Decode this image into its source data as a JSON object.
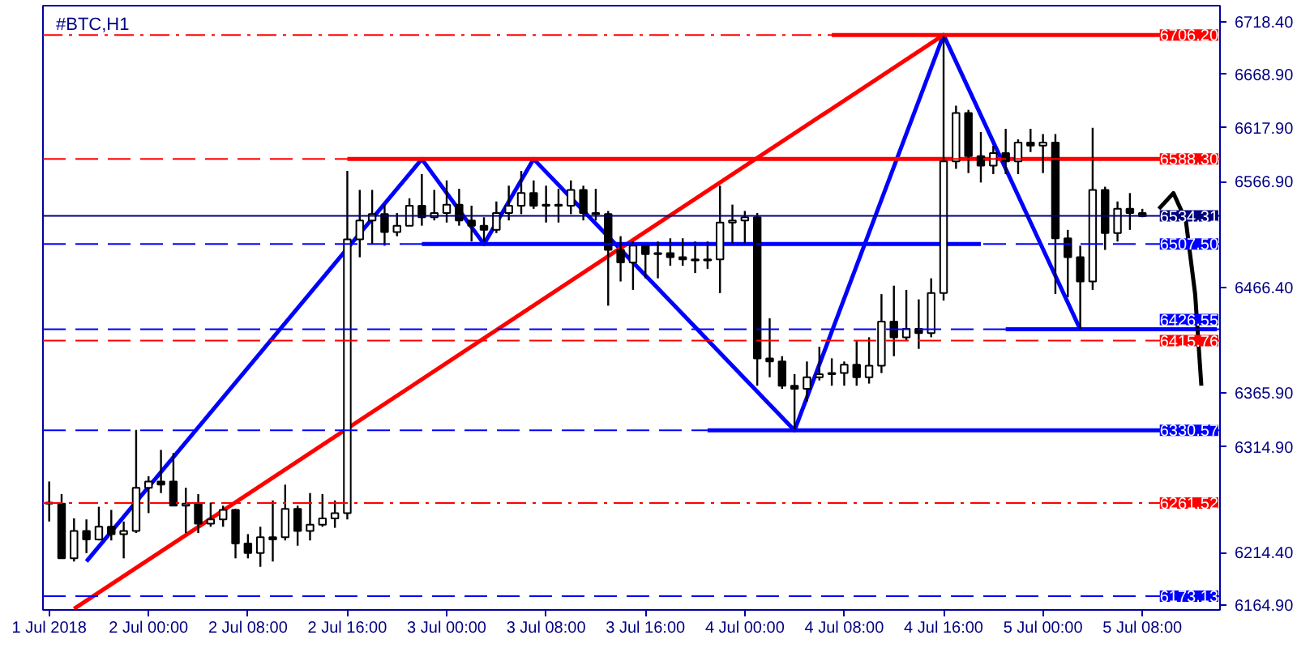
{
  "chart_data": {
    "type": "candlestick",
    "title": "#BTC,H1",
    "color": "#000000",
    "x": [
      "2018-07-01T16:00",
      "2018-07-01T17:00",
      "2018-07-01T18:00",
      "2018-07-01T19:00",
      "2018-07-01T20:00",
      "2018-07-01T21:00",
      "2018-07-01T22:00",
      "2018-07-01T23:00",
      "2018-07-02T00:00",
      "2018-07-02T01:00",
      "2018-07-02T02:00",
      "2018-07-02T03:00",
      "2018-07-02T04:00",
      "2018-07-02T05:00",
      "2018-07-02T06:00",
      "2018-07-02T07:00",
      "2018-07-02T08:00",
      "2018-07-02T09:00",
      "2018-07-02T10:00",
      "2018-07-02T11:00",
      "2018-07-02T12:00",
      "2018-07-02T13:00",
      "2018-07-02T14:00",
      "2018-07-02T15:00",
      "2018-07-02T16:00",
      "2018-07-02T17:00",
      "2018-07-02T18:00",
      "2018-07-02T19:00",
      "2018-07-02T20:00",
      "2018-07-02T21:00",
      "2018-07-02T22:00",
      "2018-07-02T23:00",
      "2018-07-03T00:00",
      "2018-07-03T01:00",
      "2018-07-03T02:00",
      "2018-07-03T03:00",
      "2018-07-03T04:00",
      "2018-07-03T05:00",
      "2018-07-03T06:00",
      "2018-07-03T07:00",
      "2018-07-03T08:00",
      "2018-07-03T09:00",
      "2018-07-03T10:00",
      "2018-07-03T11:00",
      "2018-07-03T12:00",
      "2018-07-03T13:00",
      "2018-07-03T14:00",
      "2018-07-03T15:00",
      "2018-07-03T16:00",
      "2018-07-03T17:00",
      "2018-07-03T18:00",
      "2018-07-03T19:00",
      "2018-07-03T20:00",
      "2018-07-03T21:00",
      "2018-07-03T22:00",
      "2018-07-03T23:00",
      "2018-07-04T00:00",
      "2018-07-04T01:00",
      "2018-07-04T02:00",
      "2018-07-04T03:00",
      "2018-07-04T04:00",
      "2018-07-04T05:00",
      "2018-07-04T06:00",
      "2018-07-04T07:00",
      "2018-07-04T08:00",
      "2018-07-04T09:00",
      "2018-07-04T10:00",
      "2018-07-04T11:00",
      "2018-07-04T12:00",
      "2018-07-04T13:00",
      "2018-07-04T14:00",
      "2018-07-04T15:00",
      "2018-07-04T16:00",
      "2018-07-04T17:00",
      "2018-07-04T18:00",
      "2018-07-04T19:00",
      "2018-07-04T20:00",
      "2018-07-04T21:00",
      "2018-07-04T22:00",
      "2018-07-04T23:00",
      "2018-07-05T00:00",
      "2018-07-05T01:00",
      "2018-07-05T02:00",
      "2018-07-05T03:00",
      "2018-07-05T04:00",
      "2018-07-05T05:00",
      "2018-07-05T06:00",
      "2018-07-05T07:00",
      "2018-07-05T08:00"
    ],
    "ohlc": [
      [
        6262,
        6282,
        6244,
        6261
      ],
      [
        6261,
        6270,
        6209,
        6209
      ],
      [
        6209,
        6247,
        6206,
        6235
      ],
      [
        6235,
        6246,
        6214,
        6227
      ],
      [
        6227,
        6258,
        6226,
        6239
      ],
      [
        6239,
        6255,
        6226,
        6232
      ],
      [
        6232,
        6244,
        6209,
        6235
      ],
      [
        6235,
        6331,
        6233,
        6276
      ],
      [
        6276,
        6287,
        6252,
        6282
      ],
      [
        6282,
        6312,
        6271,
        6279
      ],
      [
        6282,
        6309,
        6259,
        6259
      ],
      [
        6259,
        6276,
        6233,
        6261
      ],
      [
        6261,
        6270,
        6233,
        6242
      ],
      [
        6242,
        6262,
        6239,
        6246
      ],
      [
        6246,
        6259,
        6239,
        6255
      ],
      [
        6255,
        6256,
        6209,
        6223
      ],
      [
        6223,
        6232,
        6209,
        6214
      ],
      [
        6214,
        6239,
        6201,
        6229
      ],
      [
        6229,
        6264,
        6206,
        6227
      ],
      [
        6229,
        6279,
        6226,
        6256
      ],
      [
        6256,
        6259,
        6221,
        6235
      ],
      [
        6235,
        6271,
        6226,
        6241
      ],
      [
        6241,
        6270,
        6239,
        6247
      ],
      [
        6247,
        6264,
        6238,
        6252
      ],
      [
        6252,
        6577,
        6246,
        6512
      ],
      [
        6512,
        6559,
        6495,
        6530
      ],
      [
        6530,
        6559,
        6507,
        6536
      ],
      [
        6536,
        6545,
        6506,
        6519
      ],
      [
        6519,
        6537,
        6515,
        6525
      ],
      [
        6525,
        6551,
        6525,
        6544
      ],
      [
        6544,
        6574,
        6525,
        6533
      ],
      [
        6533,
        6559,
        6530,
        6537
      ],
      [
        6537,
        6568,
        6528,
        6545
      ],
      [
        6545,
        6560,
        6525,
        6530
      ],
      [
        6530,
        6544,
        6510,
        6525
      ],
      [
        6525,
        6533,
        6510,
        6521
      ],
      [
        6521,
        6548,
        6518,
        6537
      ],
      [
        6537,
        6563,
        6530,
        6544
      ],
      [
        6544,
        6577,
        6536,
        6556
      ],
      [
        6556,
        6568,
        6541,
        6544
      ],
      [
        6544,
        6563,
        6528,
        6545
      ],
      [
        6545,
        6560,
        6528,
        6544
      ],
      [
        6544,
        6568,
        6536,
        6559
      ],
      [
        6559,
        6563,
        6530,
        6537
      ],
      [
        6537,
        6560,
        6530,
        6536
      ],
      [
        6536,
        6539,
        6449,
        6502
      ],
      [
        6502,
        6515,
        6472,
        6490
      ],
      [
        6490,
        6510,
        6464,
        6506
      ],
      [
        6506,
        6507,
        6475,
        6498
      ],
      [
        6498,
        6510,
        6475,
        6499
      ],
      [
        6499,
        6513,
        6487,
        6495
      ],
      [
        6495,
        6513,
        6487,
        6493
      ],
      [
        6493,
        6510,
        6480,
        6492
      ],
      [
        6492,
        6510,
        6484,
        6493
      ],
      [
        6493,
        6563,
        6461,
        6528
      ],
      [
        6528,
        6545,
        6507,
        6530
      ],
      [
        6530,
        6539,
        6507,
        6533
      ],
      [
        6533,
        6537,
        6373,
        6399
      ],
      [
        6399,
        6437,
        6381,
        6396
      ],
      [
        6396,
        6401,
        6370,
        6373
      ],
      [
        6373,
        6384,
        6332,
        6370
      ],
      [
        6370,
        6396,
        6358,
        6381
      ],
      [
        6381,
        6410,
        6378,
        6384
      ],
      [
        6384,
        6399,
        6373,
        6385
      ],
      [
        6385,
        6396,
        6373,
        6393
      ],
      [
        6393,
        6416,
        6373,
        6381
      ],
      [
        6381,
        6419,
        6375,
        6392
      ],
      [
        6392,
        6460,
        6385,
        6434
      ],
      [
        6434,
        6468,
        6401,
        6419
      ],
      [
        6419,
        6464,
        6416,
        6427
      ],
      [
        6427,
        6455,
        6408,
        6423
      ],
      [
        6423,
        6475,
        6419,
        6461
      ],
      [
        6461,
        6706,
        6454,
        6586
      ],
      [
        6586,
        6639,
        6579,
        6632
      ],
      [
        6632,
        6635,
        6575,
        6591
      ],
      [
        6591,
        6614,
        6566,
        6582
      ],
      [
        6582,
        6601,
        6574,
        6594
      ],
      [
        6594,
        6617,
        6574,
        6586
      ],
      [
        6586,
        6607,
        6574,
        6604
      ],
      [
        6604,
        6617,
        6595,
        6601
      ],
      [
        6601,
        6612,
        6575,
        6604
      ],
      [
        6604,
        6612,
        6460,
        6513
      ],
      [
        6513,
        6521,
        6457,
        6495
      ],
      [
        6495,
        6506,
        6427,
        6472
      ],
      [
        6472,
        6618,
        6464,
        6559
      ],
      [
        6559,
        6562,
        6502,
        6518
      ],
      [
        6518,
        6548,
        6510,
        6541
      ],
      [
        6541,
        6556,
        6521,
        6537
      ],
      [
        6537,
        6541,
        6533,
        6534
      ]
    ],
    "series": [
      {
        "type": "line",
        "color": "#0000ff",
        "x": [
          "2018-07-01T19:00",
          "2018-07-02T22:00",
          "2018-07-03T03:00",
          "2018-07-03T07:00",
          "2018-07-04T04:00",
          "2018-07-04T16:00",
          "2018-07-05T03:00"
        ],
        "values": [
          6206,
          6588.3,
          6507.5,
          6588.3,
          6330.57,
          6706.2,
          6426.55
        ]
      },
      {
        "type": "line",
        "color": "#ff0000",
        "x": [
          "2018-07-01T18:00",
          "2018-07-04T16:00"
        ],
        "values": [
          6161,
          6706.2
        ]
      },
      {
        "type": "line",
        "color": "#ff0000",
        "x": [
          "2018-07-04T07:00",
          "2018-07-05T13:00"
        ],
        "values": [
          6706.2,
          6706.2
        ]
      },
      {
        "type": "line",
        "color": "#ff0000",
        "x": [
          "2018-07-02T16:00",
          "2018-07-05T11:00"
        ],
        "values": [
          6588.3,
          6588.3
        ]
      },
      {
        "type": "line",
        "color": "#0000ff",
        "x": [
          "2018-07-02T22:00",
          "2018-07-04T19:00"
        ],
        "values": [
          6507.5,
          6507.5
        ]
      },
      {
        "type": "line",
        "color": "#0000ff",
        "x": [
          "2018-07-04T21:00",
          "2018-07-05T14:00"
        ],
        "values": [
          6426.55,
          6426.55
        ]
      },
      {
        "type": "line",
        "color": "#0000ff",
        "x": [
          "2018-07-03T21:00",
          "2018-07-05T11:00"
        ],
        "values": [
          6330.57,
          6330.57
        ]
      },
      {
        "type": "line",
        "color": "#000000",
        "x": [
          "2018-07-05T09:20",
          "2018-07-05T10:30",
          "2018-07-05T11:30",
          "2018-07-05T12:15",
          "2018-07-05T12:45"
        ],
        "values": [
          6541,
          6556,
          6530,
          6460,
          6373
        ]
      }
    ],
    "ref_lines": [
      {
        "axis": "y",
        "value": 6706.2,
        "label": "6706.20",
        "color": "#ff0000",
        "line_style": "dotted"
      },
      {
        "axis": "y",
        "value": 6588.3,
        "label": "6588.30",
        "color": "#ff0000",
        "line_style": "dashed"
      },
      {
        "axis": "y",
        "value": 6534.31,
        "label": "6534.31",
        "color": "#000080",
        "line_style": "solid"
      },
      {
        "axis": "y",
        "value": 6507.5,
        "label": "6507.50",
        "color": "#0000ff",
        "line_style": "dashed"
      },
      {
        "axis": "y",
        "value": 6426.55,
        "label": "6426.55",
        "color": "#0000ff",
        "line_style": "dashed"
      },
      {
        "axis": "y",
        "value": 6415.76,
        "label": "6415.76",
        "color": "#ff0000",
        "line_style": "dashed"
      },
      {
        "axis": "y",
        "value": 6330.57,
        "label": "6330.57",
        "color": "#0000ff",
        "line_style": "dashed"
      },
      {
        "axis": "y",
        "value": 6261.52,
        "label": "6261.52",
        "color": "#ff0000",
        "line_style": "dotted"
      },
      {
        "axis": "y",
        "value": 6173.13,
        "label": "6173.13",
        "color": "#0000ff",
        "line_style": "dashed"
      }
    ],
    "xlim": [
      "2018-07-01T15:30",
      "2018-07-05T14:15"
    ],
    "xticks": [
      {
        "value": "2018-07-01T16:00",
        "label": "1 Jul 2018"
      },
      {
        "value": "2018-07-02T00:00",
        "label": "2 Jul 00:00"
      },
      {
        "value": "2018-07-02T08:00",
        "label": "2 Jul 08:00"
      },
      {
        "value": "2018-07-02T16:00",
        "label": "2 Jul 16:00"
      },
      {
        "value": "2018-07-03T00:00",
        "label": "3 Jul 00:00"
      },
      {
        "value": "2018-07-03T08:00",
        "label": "3 Jul 08:00"
      },
      {
        "value": "2018-07-03T16:00",
        "label": "3 Jul 16:00"
      },
      {
        "value": "2018-07-04T00:00",
        "label": "4 Jul 00:00"
      },
      {
        "value": "2018-07-04T08:00",
        "label": "4 Jul 08:00"
      },
      {
        "value": "2018-07-04T16:00",
        "label": "4 Jul 16:00"
      },
      {
        "value": "2018-07-05T00:00",
        "label": "5 Jul 00:00"
      },
      {
        "value": "2018-07-05T08:00",
        "label": "5 Jul 08:00"
      }
    ],
    "ylim": [
      6160,
      6734
    ],
    "yticks": [
      {
        "value": 6718.4,
        "label": "6718.40"
      },
      {
        "value": 6668.9,
        "label": "6668.90"
      },
      {
        "value": 6617.9,
        "label": "6617.90"
      },
      {
        "value": 6566.9,
        "label": "6566.90"
      },
      {
        "value": 6466.4,
        "label": "6466.40"
      },
      {
        "value": 6365.9,
        "label": "6365.90"
      },
      {
        "value": 6314.9,
        "label": "6314.90"
      },
      {
        "value": 6214.4,
        "label": "6214.40"
      },
      {
        "value": 6164.9,
        "label": "6164.90"
      }
    ],
    "grid": false
  }
}
